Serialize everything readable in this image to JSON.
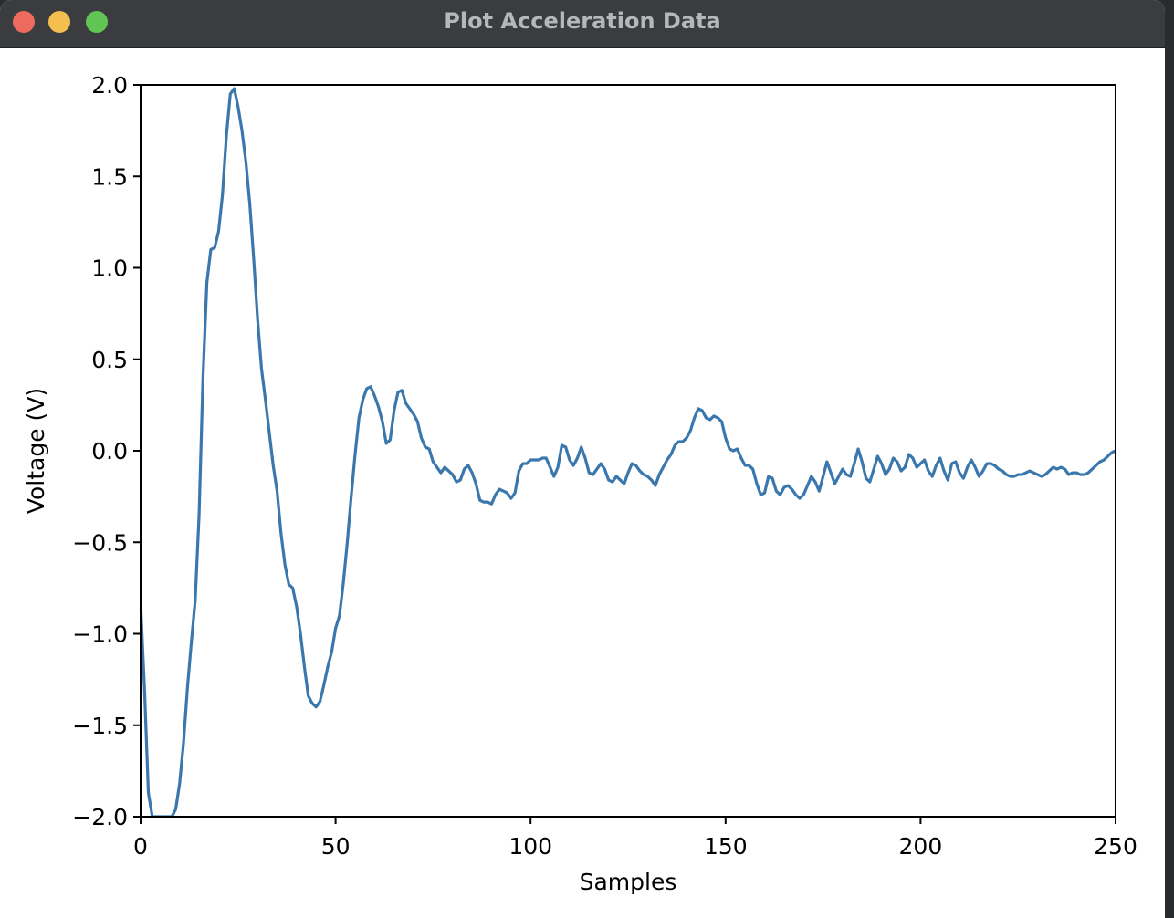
{
  "window": {
    "title": "Plot Acceleration Data"
  },
  "colors": {
    "line": "#3a77ad",
    "axes": "#000000",
    "titlebar": "#3a3c40"
  },
  "chart_data": {
    "type": "line",
    "xlabel": "Samples",
    "ylabel": "Voltage (V)",
    "xlim": [
      0,
      250
    ],
    "ylim": [
      -2.0,
      2.0
    ],
    "x_ticks": [
      0,
      50,
      100,
      150,
      200,
      250
    ],
    "x_tick_labels": [
      "0",
      "50",
      "100",
      "150",
      "200",
      "250"
    ],
    "y_ticks": [
      2.0,
      1.5,
      1.0,
      0.5,
      0.0,
      -0.5,
      -1.0,
      -1.5,
      -2.0
    ],
    "y_tick_labels": [
      "2.0",
      "1.5",
      "1.0",
      "0.5",
      "0.0",
      "−0.5",
      "−1.0",
      "−1.5",
      "−2.0"
    ],
    "grid": false,
    "series": [
      {
        "points": [
          [
            0,
            -0.83
          ],
          [
            1,
            -1.3
          ],
          [
            2,
            -1.87
          ],
          [
            3,
            -2.0
          ],
          [
            4,
            -2.0
          ],
          [
            5,
            -2.0
          ],
          [
            6,
            -2.0
          ],
          [
            7,
            -2.0
          ],
          [
            8,
            -2.0
          ],
          [
            9,
            -1.96
          ],
          [
            10,
            -1.82
          ],
          [
            11,
            -1.6
          ],
          [
            12,
            -1.3
          ],
          [
            13,
            -1.05
          ],
          [
            14,
            -0.82
          ],
          [
            15,
            -0.35
          ],
          [
            16,
            0.4
          ],
          [
            17,
            0.92
          ],
          [
            18,
            1.1
          ],
          [
            19,
            1.11
          ],
          [
            20,
            1.2
          ],
          [
            21,
            1.4
          ],
          [
            22,
            1.72
          ],
          [
            23,
            1.95
          ],
          [
            24,
            1.98
          ],
          [
            25,
            1.88
          ],
          [
            26,
            1.75
          ],
          [
            27,
            1.58
          ],
          [
            28,
            1.35
          ],
          [
            29,
            1.05
          ],
          [
            30,
            0.72
          ],
          [
            31,
            0.45
          ],
          [
            32,
            0.28
          ],
          [
            33,
            0.1
          ],
          [
            34,
            -0.08
          ],
          [
            35,
            -0.22
          ],
          [
            36,
            -0.45
          ],
          [
            37,
            -0.62
          ],
          [
            38,
            -0.73
          ],
          [
            39,
            -0.75
          ],
          [
            40,
            -0.85
          ],
          [
            41,
            -1.0
          ],
          [
            42,
            -1.18
          ],
          [
            43,
            -1.34
          ],
          [
            44,
            -1.38
          ],
          [
            45,
            -1.4
          ],
          [
            46,
            -1.37
          ],
          [
            47,
            -1.28
          ],
          [
            48,
            -1.18
          ],
          [
            49,
            -1.1
          ],
          [
            50,
            -0.97
          ],
          [
            51,
            -0.9
          ],
          [
            52,
            -0.72
          ],
          [
            53,
            -0.5
          ],
          [
            54,
            -0.25
          ],
          [
            55,
            -0.02
          ],
          [
            56,
            0.18
          ],
          [
            57,
            0.28
          ],
          [
            58,
            0.34
          ],
          [
            59,
            0.35
          ],
          [
            60,
            0.3
          ],
          [
            61,
            0.24
          ],
          [
            62,
            0.16
          ],
          [
            63,
            0.04
          ],
          [
            64,
            0.06
          ],
          [
            65,
            0.22
          ],
          [
            66,
            0.32
          ],
          [
            67,
            0.33
          ],
          [
            68,
            0.26
          ],
          [
            69,
            0.23
          ],
          [
            70,
            0.2
          ],
          [
            71,
            0.16
          ],
          [
            72,
            0.07
          ],
          [
            73,
            0.02
          ],
          [
            74,
            0.01
          ],
          [
            75,
            -0.06
          ],
          [
            76,
            -0.09
          ],
          [
            77,
            -0.12
          ],
          [
            78,
            -0.09
          ],
          [
            79,
            -0.11
          ],
          [
            80,
            -0.13
          ],
          [
            81,
            -0.17
          ],
          [
            82,
            -0.16
          ],
          [
            83,
            -0.1
          ],
          [
            84,
            -0.08
          ],
          [
            85,
            -0.12
          ],
          [
            86,
            -0.18
          ],
          [
            87,
            -0.27
          ],
          [
            88,
            -0.28
          ],
          [
            89,
            -0.28
          ],
          [
            90,
            -0.29
          ],
          [
            91,
            -0.24
          ],
          [
            92,
            -0.21
          ],
          [
            93,
            -0.22
          ],
          [
            94,
            -0.23
          ],
          [
            95,
            -0.26
          ],
          [
            96,
            -0.23
          ],
          [
            97,
            -0.11
          ],
          [
            98,
            -0.07
          ],
          [
            99,
            -0.07
          ],
          [
            100,
            -0.05
          ],
          [
            101,
            -0.05
          ],
          [
            102,
            -0.05
          ],
          [
            103,
            -0.04
          ],
          [
            104,
            -0.04
          ],
          [
            105,
            -0.09
          ],
          [
            106,
            -0.14
          ],
          [
            107,
            -0.09
          ],
          [
            108,
            0.03
          ],
          [
            109,
            0.02
          ],
          [
            110,
            -0.05
          ],
          [
            111,
            -0.08
          ],
          [
            112,
            -0.04
          ],
          [
            113,
            0.02
          ],
          [
            114,
            -0.04
          ],
          [
            115,
            -0.12
          ],
          [
            116,
            -0.13
          ],
          [
            117,
            -0.1
          ],
          [
            118,
            -0.07
          ],
          [
            119,
            -0.1
          ],
          [
            120,
            -0.16
          ],
          [
            121,
            -0.17
          ],
          [
            122,
            -0.14
          ],
          [
            123,
            -0.16
          ],
          [
            124,
            -0.18
          ],
          [
            125,
            -0.12
          ],
          [
            126,
            -0.07
          ],
          [
            127,
            -0.08
          ],
          [
            128,
            -0.11
          ],
          [
            129,
            -0.13
          ],
          [
            130,
            -0.14
          ],
          [
            131,
            -0.16
          ],
          [
            132,
            -0.19
          ],
          [
            133,
            -0.13
          ],
          [
            134,
            -0.09
          ],
          [
            135,
            -0.05
          ],
          [
            136,
            -0.02
          ],
          [
            137,
            0.03
          ],
          [
            138,
            0.05
          ],
          [
            139,
            0.05
          ],
          [
            140,
            0.07
          ],
          [
            141,
            0.11
          ],
          [
            142,
            0.18
          ],
          [
            143,
            0.23
          ],
          [
            144,
            0.22
          ],
          [
            145,
            0.18
          ],
          [
            146,
            0.17
          ],
          [
            147,
            0.19
          ],
          [
            148,
            0.18
          ],
          [
            149,
            0.16
          ],
          [
            150,
            0.07
          ],
          [
            151,
            0.01
          ],
          [
            152,
            0.0
          ],
          [
            153,
            0.01
          ],
          [
            154,
            -0.04
          ],
          [
            155,
            -0.08
          ],
          [
            156,
            -0.08
          ],
          [
            157,
            -0.1
          ],
          [
            158,
            -0.18
          ],
          [
            159,
            -0.24
          ],
          [
            160,
            -0.23
          ],
          [
            161,
            -0.14
          ],
          [
            162,
            -0.15
          ],
          [
            163,
            -0.22
          ],
          [
            164,
            -0.24
          ],
          [
            165,
            -0.2
          ],
          [
            166,
            -0.19
          ],
          [
            167,
            -0.21
          ],
          [
            168,
            -0.24
          ],
          [
            169,
            -0.26
          ],
          [
            170,
            -0.24
          ],
          [
            171,
            -0.19
          ],
          [
            172,
            -0.14
          ],
          [
            173,
            -0.17
          ],
          [
            174,
            -0.22
          ],
          [
            175,
            -0.14
          ],
          [
            176,
            -0.06
          ],
          [
            177,
            -0.12
          ],
          [
            178,
            -0.18
          ],
          [
            179,
            -0.14
          ],
          [
            180,
            -0.1
          ],
          [
            181,
            -0.13
          ],
          [
            182,
            -0.14
          ],
          [
            183,
            -0.07
          ],
          [
            184,
            0.01
          ],
          [
            185,
            -0.06
          ],
          [
            186,
            -0.15
          ],
          [
            187,
            -0.17
          ],
          [
            188,
            -0.1
          ],
          [
            189,
            -0.03
          ],
          [
            190,
            -0.07
          ],
          [
            191,
            -0.13
          ],
          [
            192,
            -0.1
          ],
          [
            193,
            -0.04
          ],
          [
            194,
            -0.06
          ],
          [
            195,
            -0.11
          ],
          [
            196,
            -0.09
          ],
          [
            197,
            -0.02
          ],
          [
            198,
            -0.04
          ],
          [
            199,
            -0.09
          ],
          [
            200,
            -0.07
          ],
          [
            201,
            -0.05
          ],
          [
            202,
            -0.11
          ],
          [
            203,
            -0.14
          ],
          [
            204,
            -0.08
          ],
          [
            205,
            -0.04
          ],
          [
            206,
            -0.11
          ],
          [
            207,
            -0.16
          ],
          [
            208,
            -0.07
          ],
          [
            209,
            -0.06
          ],
          [
            210,
            -0.12
          ],
          [
            211,
            -0.15
          ],
          [
            212,
            -0.09
          ],
          [
            213,
            -0.05
          ],
          [
            214,
            -0.09
          ],
          [
            215,
            -0.14
          ],
          [
            216,
            -0.11
          ],
          [
            217,
            -0.07
          ],
          [
            218,
            -0.07
          ],
          [
            219,
            -0.08
          ],
          [
            220,
            -0.1
          ],
          [
            221,
            -0.11
          ],
          [
            222,
            -0.13
          ],
          [
            223,
            -0.14
          ],
          [
            224,
            -0.14
          ],
          [
            225,
            -0.13
          ],
          [
            226,
            -0.13
          ],
          [
            227,
            -0.12
          ],
          [
            228,
            -0.11
          ],
          [
            229,
            -0.12
          ],
          [
            230,
            -0.13
          ],
          [
            231,
            -0.14
          ],
          [
            232,
            -0.13
          ],
          [
            233,
            -0.11
          ],
          [
            234,
            -0.09
          ],
          [
            235,
            -0.1
          ],
          [
            236,
            -0.09
          ],
          [
            237,
            -0.1
          ],
          [
            238,
            -0.13
          ],
          [
            239,
            -0.12
          ],
          [
            240,
            -0.12
          ],
          [
            241,
            -0.13
          ],
          [
            242,
            -0.13
          ],
          [
            243,
            -0.12
          ],
          [
            244,
            -0.1
          ],
          [
            245,
            -0.08
          ],
          [
            246,
            -0.06
          ],
          [
            247,
            -0.05
          ],
          [
            248,
            -0.03
          ],
          [
            249,
            -0.01
          ],
          [
            250,
            0.0
          ]
        ]
      }
    ]
  }
}
